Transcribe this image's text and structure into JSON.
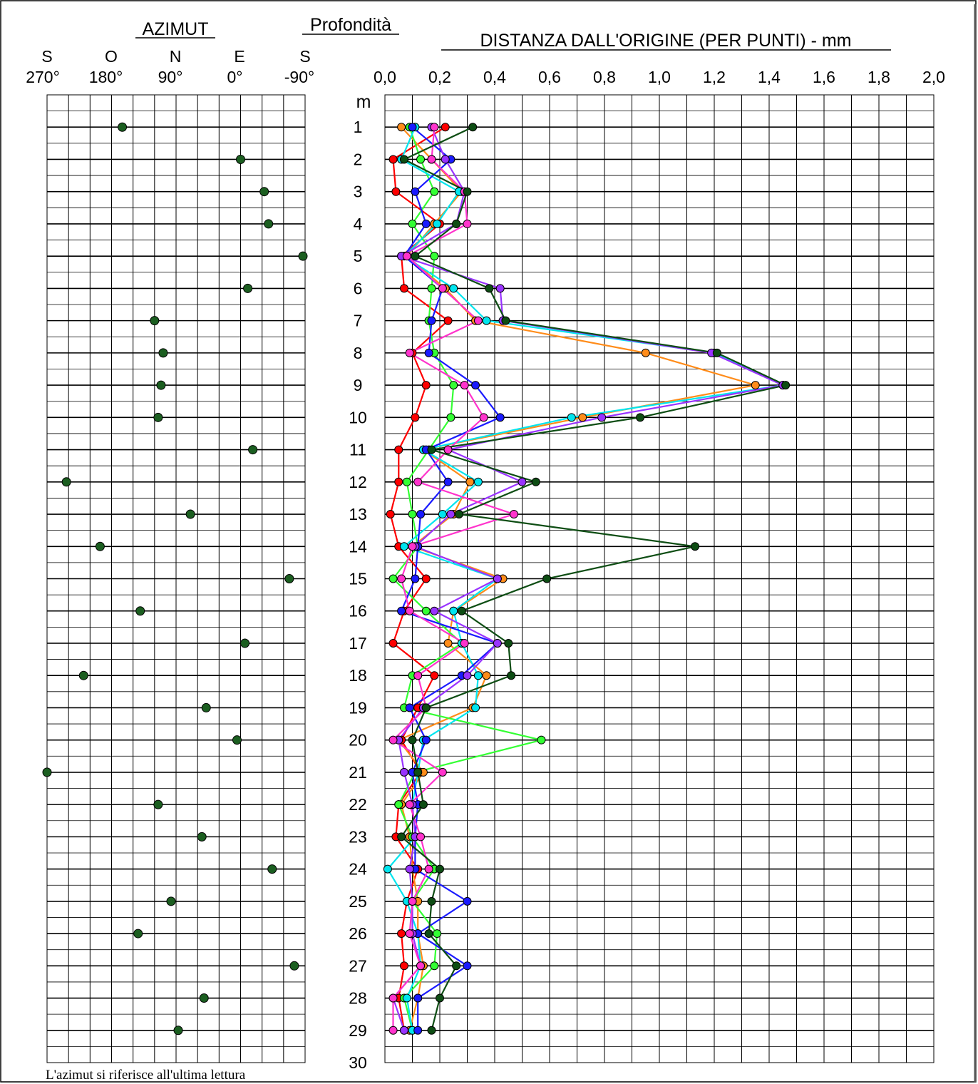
{
  "titles": {
    "azimut": "AZIMUT",
    "profondita": "Profondità",
    "distanza": "DISTANZA DALL'ORIGINE (PER PUNTI) - mm",
    "depth_unit": "m",
    "footnote": "L'azimut si riferisce all'ultima lettura"
  },
  "azimut_axis": {
    "compass": [
      "S",
      "O",
      "N",
      "E",
      "S"
    ],
    "degrees": [
      "270°",
      "180°",
      "90°",
      "0°",
      "-90°"
    ],
    "range_deg": [
      270,
      -90
    ]
  },
  "depth_labels": [
    "1",
    "2",
    "3",
    "4",
    "5",
    "6",
    "7",
    "8",
    "9",
    "10",
    "11",
    "12",
    "13",
    "14",
    "15",
    "16",
    "17",
    "18",
    "19",
    "20",
    "21",
    "22",
    "23",
    "24",
    "25",
    "26",
    "27",
    "28",
    "29",
    "30"
  ],
  "distance_ticks": [
    "0,0",
    "0,2",
    "0,4",
    "0,6",
    "0,8",
    "1,0",
    "1,2",
    "1,4",
    "1,6",
    "1,8",
    "2,0"
  ],
  "colors": {
    "grid": "#000000",
    "azimut_marker": "#1b5e20"
  },
  "chart_data": [
    {
      "type": "scatter",
      "name": "azimut",
      "ylabel": "Profondità",
      "xlim": [
        270,
        -90
      ],
      "ylim": [
        0,
        30
      ],
      "grid": true,
      "depth": [
        1,
        2,
        3,
        4,
        5,
        6,
        7,
        8,
        9,
        10,
        11,
        12,
        13,
        14,
        15,
        16,
        17,
        18,
        19,
        20,
        21,
        22,
        23,
        24,
        25,
        26,
        27,
        28,
        29
      ],
      "azimuth_deg": [
        165,
        0,
        -33,
        -39,
        -87,
        -10,
        120,
        108,
        111,
        115,
        -17,
        243,
        70,
        196,
        -68,
        140,
        -6,
        219,
        48,
        5,
        270,
        115,
        54,
        -44,
        97,
        143,
        -75,
        51,
        87
      ]
    },
    {
      "type": "line",
      "title": "DISTANZA DALL'ORIGINE (PER PUNTI) - mm",
      "xlim": [
        0,
        2
      ],
      "ylim": [
        0,
        30
      ],
      "grid": true,
      "depth": [
        1,
        2,
        3,
        4,
        5,
        6,
        7,
        8,
        9,
        10,
        11,
        12,
        13,
        14,
        15,
        16,
        17,
        18,
        19,
        20,
        21,
        22,
        23,
        24,
        25,
        26,
        27,
        28,
        29
      ],
      "series": [
        {
          "color": "#ff0000",
          "values": [
            0.22,
            0.03,
            0.04,
            0.2,
            0.06,
            0.07,
            0.23,
            0.1,
            0.15,
            0.11,
            0.05,
            0.05,
            0.02,
            0.05,
            0.15,
            0.07,
            0.03,
            0.18,
            0.12,
            0.06,
            0.13,
            0.05,
            0.04,
            0.12,
            0.08,
            0.06,
            0.07,
            0.05,
            0.07
          ]
        },
        {
          "color": "#ff8c1a",
          "values": [
            0.06,
            0.17,
            0.28,
            0.18,
            0.08,
            0.22,
            0.33,
            0.95,
            1.35,
            0.72,
            0.14,
            0.31,
            0.25,
            0.1,
            0.43,
            0.25,
            0.23,
            0.37,
            0.32,
            0.05,
            0.14,
            0.06,
            0.09,
            0.1,
            0.12,
            0.12,
            0.14,
            0.12,
            0.09
          ]
        },
        {
          "color": "#33ff33",
          "values": [
            0.09,
            0.13,
            0.18,
            0.1,
            0.18,
            0.17,
            0.16,
            0.18,
            0.25,
            0.24,
            0.16,
            0.08,
            0.1,
            0.12,
            0.03,
            0.15,
            0.28,
            0.1,
            0.07,
            0.57,
            0.11,
            0.05,
            0.1,
            0.18,
            0.1,
            0.19,
            0.18,
            0.07,
            0.1
          ]
        },
        {
          "color": "#00e5ee",
          "values": [
            0.11,
            0.06,
            0.27,
            0.19,
            0.07,
            0.25,
            0.37,
            1.2,
            1.45,
            0.68,
            0.14,
            0.34,
            0.21,
            0.07,
            0.41,
            0.25,
            0.28,
            0.34,
            0.33,
            0.14,
            0.12,
            0.1,
            0.11,
            0.01,
            0.08,
            0.12,
            0.13,
            0.08,
            0.1
          ]
        },
        {
          "color": "#1a1aff",
          "values": [
            0.1,
            0.24,
            0.11,
            0.15,
            0.07,
            0.21,
            0.17,
            0.16,
            0.33,
            0.42,
            0.15,
            0.23,
            0.13,
            0.12,
            0.11,
            0.06,
            0.41,
            0.28,
            0.09,
            0.15,
            0.1,
            0.12,
            0.11,
            0.11,
            0.3,
            0.12,
            0.3,
            0.12,
            0.12
          ]
        },
        {
          "color": "#9933ff",
          "values": [
            0.17,
            0.22,
            0.29,
            0.26,
            0.06,
            0.42,
            0.43,
            1.19,
            1.45,
            0.79,
            0.23,
            0.5,
            0.24,
            0.11,
            0.41,
            0.18,
            0.41,
            0.3,
            0.14,
            0.05,
            0.07,
            0.1,
            0.11,
            0.09,
            0.1,
            0.1,
            0.13,
            0.03,
            0.07
          ]
        },
        {
          "color": "#ff33cc",
          "values": [
            0.18,
            0.17,
            0.29,
            0.3,
            0.08,
            0.21,
            0.34,
            0.09,
            0.29,
            0.36,
            0.23,
            0.12,
            0.47,
            0.1,
            0.06,
            0.09,
            0.29,
            0.12,
            0.15,
            0.03,
            0.21,
            0.09,
            0.13,
            0.16,
            0.1,
            0.09,
            0.13,
            0.03,
            0.03
          ]
        },
        {
          "color": "#0d4d13",
          "values": [
            0.32,
            0.07,
            0.3,
            0.26,
            0.11,
            0.38,
            0.44,
            1.21,
            1.46,
            0.93,
            0.17,
            0.55,
            0.27,
            1.13,
            0.59,
            0.28,
            0.45,
            0.46,
            0.15,
            0.1,
            0.12,
            0.14,
            0.06,
            0.2,
            0.17,
            0.16,
            0.26,
            0.2,
            0.17
          ]
        }
      ]
    }
  ]
}
